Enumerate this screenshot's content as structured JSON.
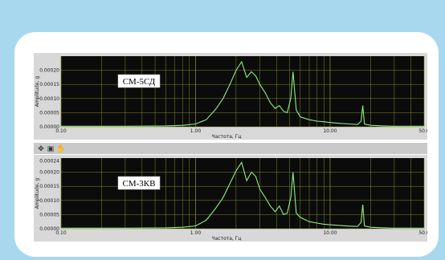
{
  "colors": {
    "plot_bg": "#0b0b0b",
    "grid": "#7f8a2e",
    "trace": "#8ff07a",
    "frame": "#d8d8d8"
  },
  "toolbar": {
    "icons": [
      "crosshair-icon",
      "zoom-icon",
      "hand-icon"
    ],
    "glyphs": [
      "✥",
      "▣",
      "✋"
    ]
  },
  "chart_data": [
    {
      "type": "line",
      "title": "",
      "annotation": "СМ-5СД",
      "xlabel": "Частота, Гц",
      "ylabel": "Amplitude, g",
      "x_scale": "log",
      "xlim": [
        0.1,
        50
      ],
      "ylim": [
        0,
        0.00025
      ],
      "x_ticks": [
        "0.10",
        "1.00",
        "10.00",
        "50.0"
      ],
      "y_ticks": [
        "0.00000",
        "0.00005",
        "0.00010",
        "0.00015",
        "0.00020"
      ],
      "series": [
        {
          "x": [
            0.1,
            0.3,
            0.6,
            0.8,
            1.0,
            1.2,
            1.4,
            1.6,
            1.8,
            2.0,
            2.2,
            2.4,
            2.6,
            2.8,
            3.0,
            3.3,
            3.6,
            3.9,
            4.2,
            4.5,
            4.8,
            5.1,
            5.3,
            5.6,
            6.0,
            7.0,
            8.0,
            9.0,
            10.0,
            12.0,
            14.0,
            16.0,
            17.0,
            17.5,
            18.0,
            20.0,
            25.0,
            30.0,
            40.0,
            50.0
          ],
          "y": [
            2e-06,
            2e-06,
            3e-06,
            5e-06,
            1e-05,
            2.5e-05,
            6e-05,
            0.0001,
            0.00015,
            0.0002,
            0.00023,
            0.000175,
            0.000195,
            0.00018,
            0.00015,
            0.00012,
            8.5e-05,
            6.5e-05,
            7.5e-05,
            5.5e-05,
            5e-05,
            0.0001,
            0.000195,
            6e-05,
            3.5e-05,
            2.5e-05,
            2e-05,
            1.8e-05,
            1.5e-05,
            1.2e-05,
            1e-05,
            8e-06,
            2e-05,
            7.5e-05,
            1e-05,
            5e-06,
            3e-06,
            2e-06,
            2e-06,
            2e-06
          ]
        }
      ]
    },
    {
      "type": "line",
      "title": "",
      "annotation": "СМ-3КВ",
      "xlabel": "Частота, Гц",
      "ylabel": "Amplitude, g",
      "x_scale": "log",
      "xlim": [
        0.1,
        50
      ],
      "ylim": [
        0,
        0.00025
      ],
      "x_ticks": [
        "0.10",
        "1.00",
        "10.00",
        "50.0"
      ],
      "y_ticks": [
        "0.00000",
        "0.00005",
        "0.00010",
        "0.00015",
        "0.00020",
        "0.00024"
      ],
      "series": [
        {
          "x": [
            0.1,
            0.3,
            0.6,
            0.8,
            1.0,
            1.2,
            1.4,
            1.6,
            1.8,
            2.0,
            2.2,
            2.4,
            2.6,
            2.8,
            3.0,
            3.3,
            3.6,
            3.9,
            4.2,
            4.5,
            4.8,
            5.1,
            5.3,
            5.6,
            6.0,
            7.0,
            8.0,
            9.0,
            10.0,
            12.0,
            14.0,
            16.0,
            17.0,
            17.5,
            18.0,
            20.0,
            25.0,
            30.0,
            40.0,
            50.0
          ],
          "y": [
            2e-06,
            2e-06,
            3e-06,
            5e-06,
            1e-05,
            3e-05,
            7e-05,
            0.00011,
            0.00016,
            0.000205,
            0.000235,
            0.00017,
            0.0002,
            0.000185,
            0.00014,
            0.00011,
            8e-05,
            6e-05,
            8e-05,
            5e-05,
            5.5e-05,
            0.00011,
            0.0002,
            5.5e-05,
            4e-05,
            2.5e-05,
            2e-05,
            1.6e-05,
            1.4e-05,
            1.1e-05,
            9e-06,
            8e-06,
            2.2e-05,
            8.5e-05,
            1e-05,
            5e-06,
            3e-06,
            2e-06,
            2e-06,
            2e-06
          ]
        }
      ]
    }
  ]
}
